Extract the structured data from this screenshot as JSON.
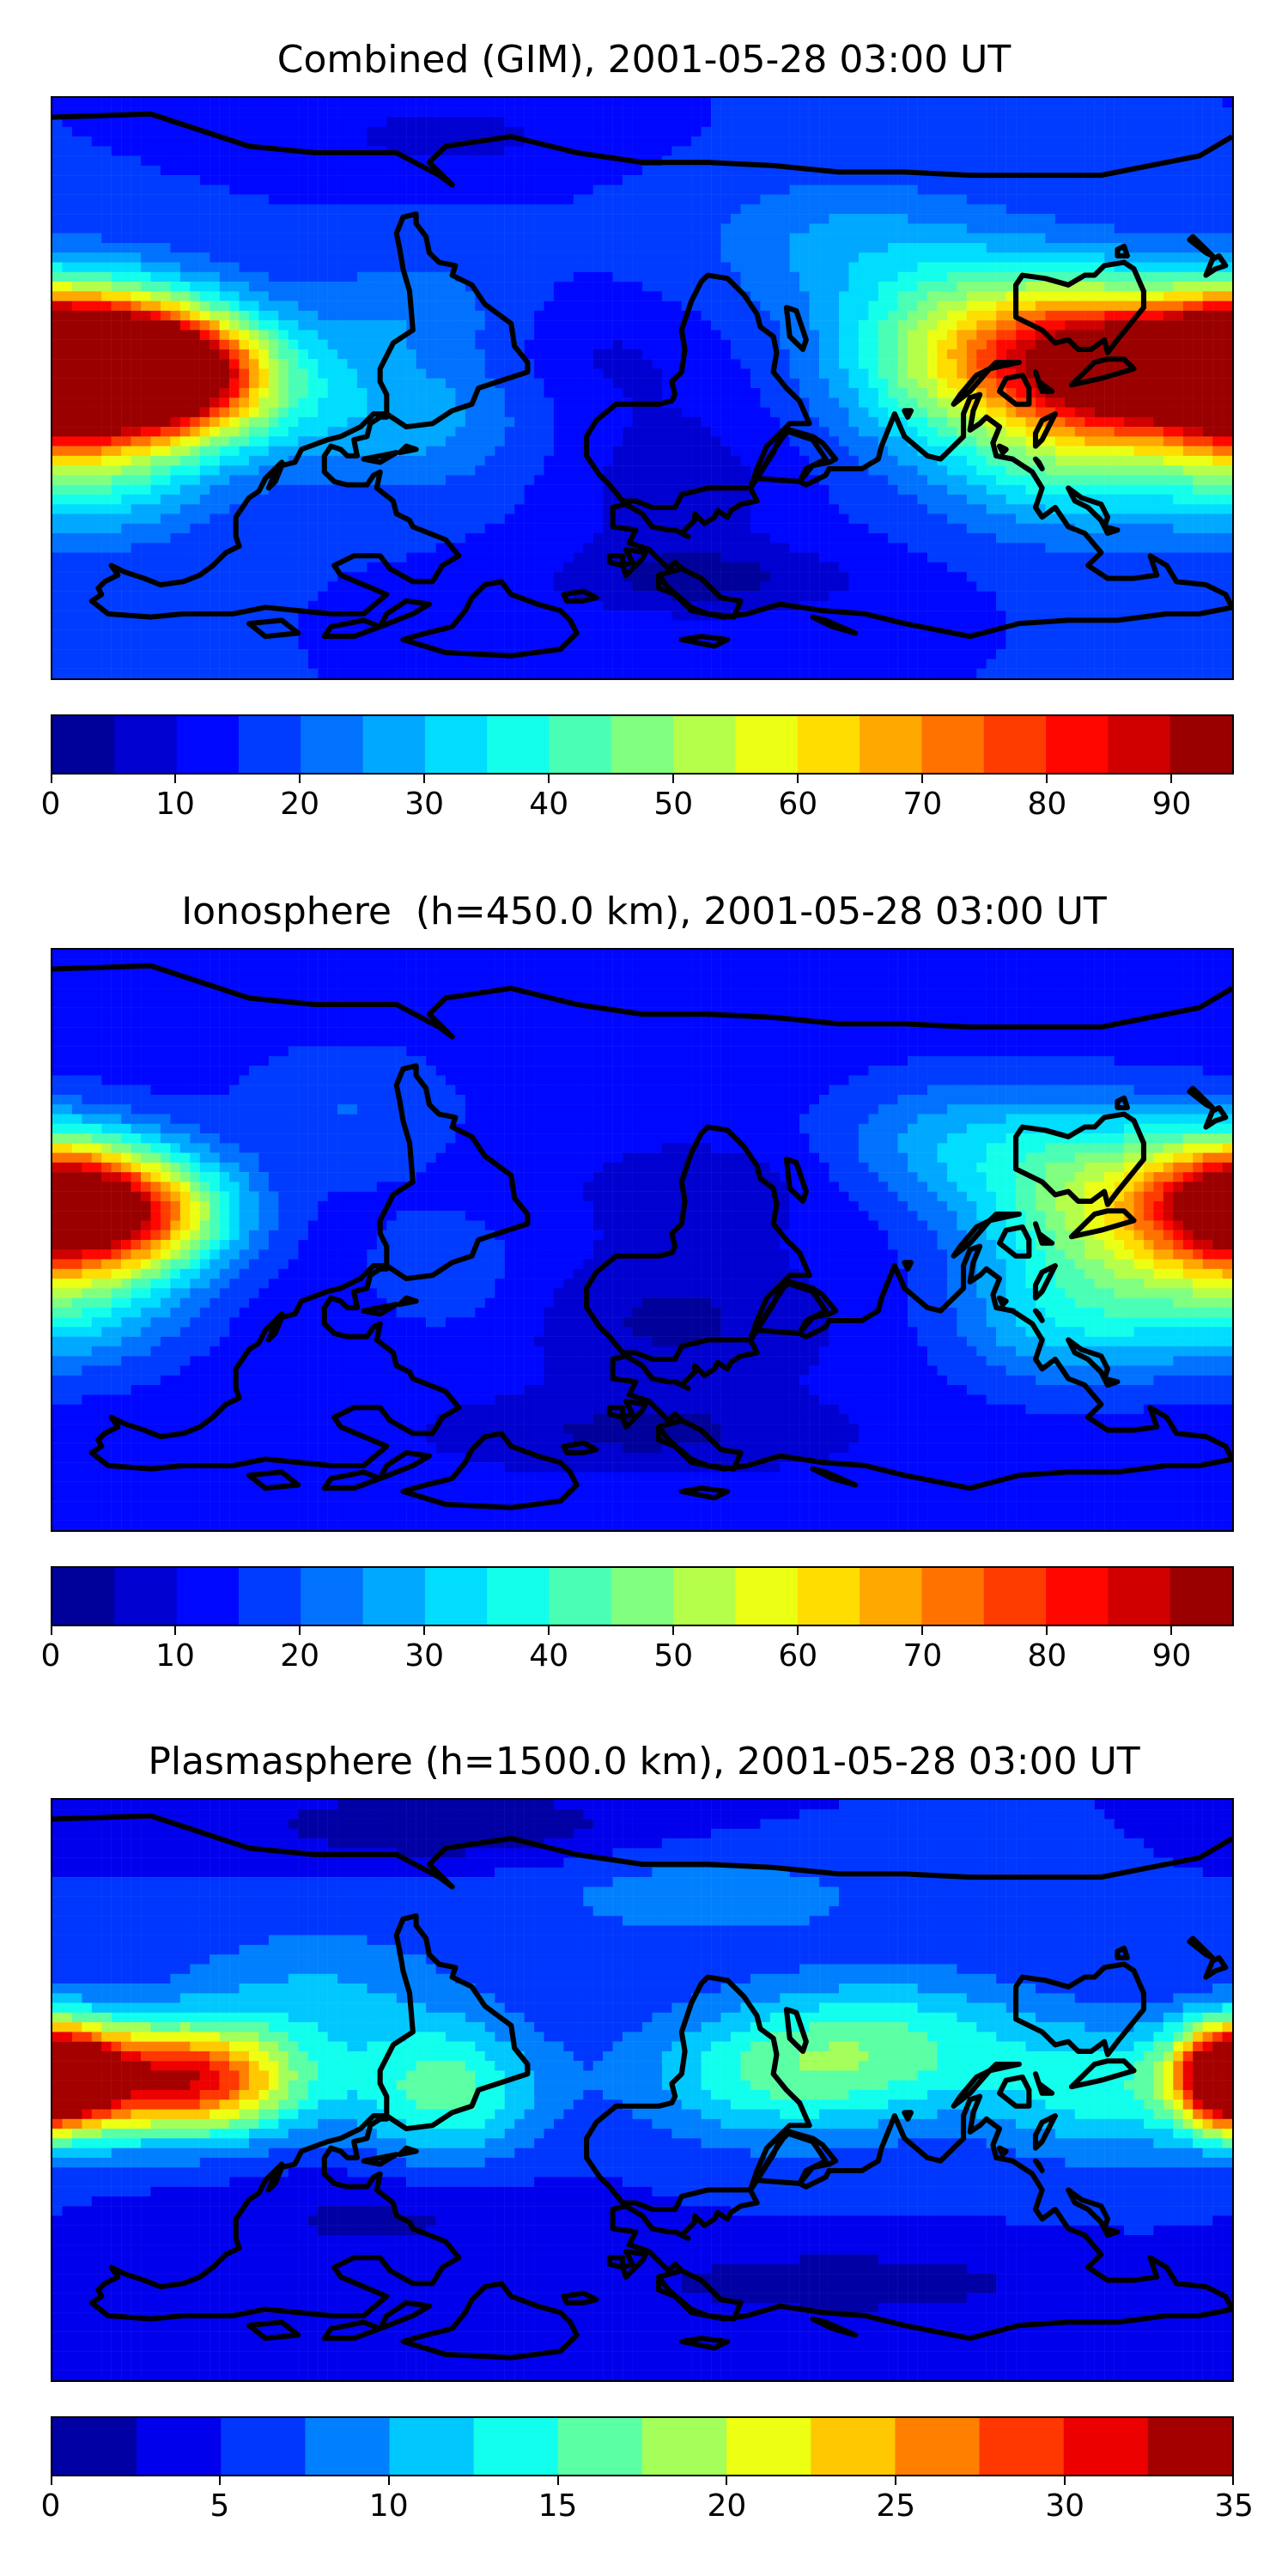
{
  "chart_data": [
    {
      "type": "heatmap",
      "title": "Combined (GIM), 2001-05-28 03:00 UT",
      "colorbar": {
        "range": [
          0,
          95
        ],
        "step": 5,
        "ticks": [
          0,
          10,
          20,
          30,
          40,
          50,
          60,
          70,
          80,
          90
        ],
        "tick_labels": [
          "0",
          "10",
          "20",
          "30",
          "40",
          "50",
          "60",
          "70",
          "80",
          "90"
        ]
      },
      "field": {
        "base": 15,
        "blobs": [
          {
            "lon": -170,
            "lat": 8,
            "value": 78,
            "sx": 25,
            "sy": 16
          },
          {
            "lon": -148,
            "lat": 5,
            "value": 60,
            "sx": 18,
            "sy": 12
          },
          {
            "lon": -130,
            "lat": 2,
            "value": 30,
            "sx": 25,
            "sy": 15
          },
          {
            "lon": -170,
            "lat": -25,
            "value": 22,
            "sx": 25,
            "sy": 15
          },
          {
            "lon": 125,
            "lat": 10,
            "value": 50,
            "sx": 25,
            "sy": 18
          },
          {
            "lon": 150,
            "lat": 5,
            "value": 48,
            "sx": 20,
            "sy": 15
          },
          {
            "lon": 180,
            "lat": 5,
            "value": 50,
            "sx": 14,
            "sy": 14
          },
          {
            "lon": 90,
            "lat": 10,
            "value": 25,
            "sx": 25,
            "sy": 20
          },
          {
            "lon": 130,
            "lat": -25,
            "value": 18,
            "sx": 25,
            "sy": 15
          },
          {
            "lon": 60,
            "lat": 45,
            "value": 10,
            "sx": 30,
            "sy": 15
          },
          {
            "lon": -70,
            "lat": -10,
            "value": 12,
            "sx": 25,
            "sy": 15
          },
          {
            "lon": -70,
            "lat": 25,
            "value": 8,
            "sx": 20,
            "sy": 12
          },
          {
            "lon": 10,
            "lat": -30,
            "value": -8,
            "sx": 25,
            "sy": 20
          },
          {
            "lon": 20,
            "lat": -60,
            "value": -10,
            "sx": 35,
            "sy": 8
          },
          {
            "lon": -10,
            "lat": 10,
            "value": -5,
            "sx": 20,
            "sy": 12
          },
          {
            "lon": -60,
            "lat": 78,
            "value": -7,
            "sx": 30,
            "sy": 8
          }
        ]
      }
    },
    {
      "type": "heatmap",
      "title": "Ionosphere  (h=450.0 km), 2001-05-28 03:00 UT",
      "colorbar": {
        "range": [
          0,
          95
        ],
        "step": 5,
        "ticks": [
          0,
          10,
          20,
          30,
          40,
          50,
          60,
          70,
          80,
          90
        ],
        "tick_labels": [
          "0",
          "10",
          "20",
          "30",
          "40",
          "50",
          "60",
          "70",
          "80",
          "90"
        ]
      },
      "field": {
        "base": 12,
        "blobs": [
          {
            "lon": -170,
            "lat": 10,
            "value": 45,
            "sx": 22,
            "sy": 15
          },
          {
            "lon": -150,
            "lat": 8,
            "value": 35,
            "sx": 20,
            "sy": 12
          },
          {
            "lon": -175,
            "lat": -20,
            "value": 18,
            "sx": 25,
            "sy": 15
          },
          {
            "lon": 150,
            "lat": 10,
            "value": 42,
            "sx": 30,
            "sy": 18
          },
          {
            "lon": 180,
            "lat": 12,
            "value": 30,
            "sx": 15,
            "sy": 12
          },
          {
            "lon": 130,
            "lat": -25,
            "value": 18,
            "sx": 25,
            "sy": 15
          },
          {
            "lon": 100,
            "lat": 30,
            "value": 15,
            "sx": 30,
            "sy": 15
          },
          {
            "lon": -90,
            "lat": 40,
            "value": 8,
            "sx": 25,
            "sy": 15
          },
          {
            "lon": -60,
            "lat": -10,
            "value": 6,
            "sx": 20,
            "sy": 15
          },
          {
            "lon": 10,
            "lat": -25,
            "value": -8,
            "sx": 30,
            "sy": 15
          },
          {
            "lon": 20,
            "lat": 15,
            "value": -6,
            "sx": 25,
            "sy": 10
          },
          {
            "lon": 0,
            "lat": -60,
            "value": -8,
            "sx": 40,
            "sy": 8
          }
        ]
      }
    },
    {
      "type": "heatmap",
      "title": "Plasmasphere (h=1500.0 km), 2001-05-28 03:00 UT",
      "colorbar": {
        "range": [
          0,
          35
        ],
        "step": 2.5,
        "ticks": [
          0,
          5,
          10,
          15,
          20,
          25,
          30,
          35
        ],
        "tick_labels": [
          "0",
          "5",
          "10",
          "15",
          "20",
          "25",
          "30",
          "35"
        ]
      },
      "field": {
        "base": 5,
        "blobs": [
          {
            "lon": -140,
            "lat": 3,
            "value": 27,
            "sx": 25,
            "sy": 12
          },
          {
            "lon": -178,
            "lat": 5,
            "value": 20,
            "sx": 15,
            "sy": 12
          },
          {
            "lon": 180,
            "lat": 3,
            "value": 20,
            "sx": 10,
            "sy": 10
          },
          {
            "lon": -60,
            "lat": 0,
            "value": 11,
            "sx": 20,
            "sy": 15
          },
          {
            "lon": 40,
            "lat": 5,
            "value": 9,
            "sx": 30,
            "sy": 15
          },
          {
            "lon": 80,
            "lat": 15,
            "value": 8,
            "sx": 30,
            "sy": 15
          },
          {
            "lon": 140,
            "lat": 0,
            "value": 8,
            "sx": 25,
            "sy": 15
          },
          {
            "lon": -100,
            "lat": 30,
            "value": 5,
            "sx": 30,
            "sy": 15
          },
          {
            "lon": 20,
            "lat": 60,
            "value": 4,
            "sx": 40,
            "sy": 10
          },
          {
            "lon": -80,
            "lat": -40,
            "value": -3,
            "sx": 40,
            "sy": 10
          },
          {
            "lon": 60,
            "lat": -60,
            "value": -4,
            "sx": 50,
            "sy": 8
          },
          {
            "lon": -60,
            "lat": 82,
            "value": -5,
            "sx": 40,
            "sy": 8
          }
        ]
      }
    }
  ]
}
